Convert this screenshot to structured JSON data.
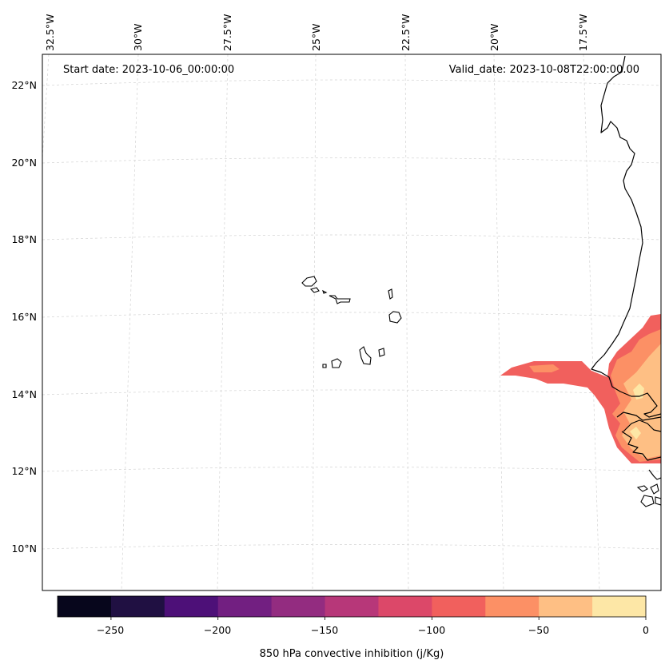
{
  "map": {
    "start_date": "Start date: 2023-10-06_00:00:00",
    "valid_date": "Valid_date: 2023-10-08T22:00:00.00",
    "lon_labels": [
      "32.5°W",
      "30°W",
      "27.5°W",
      "25°W",
      "22.5°W",
      "20°W",
      "17.5°W"
    ],
    "lat_labels": [
      "22°N",
      "20°N",
      "18°N",
      "16°N",
      "14°N",
      "12°N",
      "10°N"
    ],
    "gridlines": true
  },
  "colorbar": {
    "label": "850 hPa convective inhibition (j/Kg)",
    "ticks": [
      "−250",
      "−200",
      "−150",
      "−100",
      "−50",
      "0"
    ],
    "min": -275,
    "max": 0,
    "step": 25,
    "colors": [
      "#07061c",
      "#201042",
      "#4d1078",
      "#721f81",
      "#932c80",
      "#b73779",
      "#dc4869",
      "#f1605d",
      "#fc9065",
      "#febf84",
      "#fde7a6"
    ]
  },
  "cin_regions": [
    {
      "level": "-100 to -75",
      "color": "#f1605d"
    },
    {
      "level": "-75 to -50",
      "color": "#fc9065"
    },
    {
      "level": "-50 to -25",
      "color": "#febf84"
    },
    {
      "level": "-25 to 0",
      "color": "#fde7a6"
    }
  ]
}
